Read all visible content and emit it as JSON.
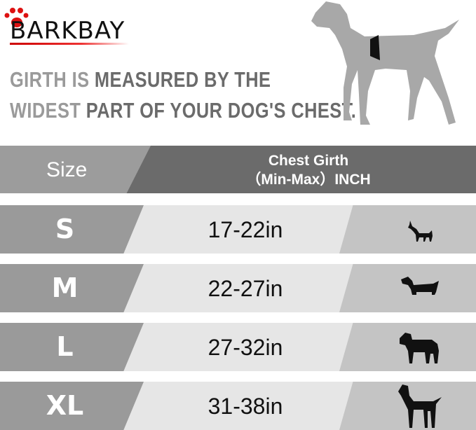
{
  "brand": {
    "logo": "BARKBAY",
    "accent": "#dd1111"
  },
  "headline": {
    "line1_light": "GIRTH IS",
    "line1_dark": "MEASURED BY THE",
    "line2_light": "WIDEST",
    "line2_dark": "PART OF YOUR DOG'S CHEST."
  },
  "table": {
    "header": {
      "size": "Size",
      "girth_line1": "Chest Girth",
      "girth_line2": "（Min-Max）INCH"
    },
    "rows": [
      {
        "size": "S",
        "girth": "17-22in",
        "icon": "chihuahua-icon"
      },
      {
        "size": "M",
        "girth": "22-27in",
        "icon": "dachshund-icon"
      },
      {
        "size": "L",
        "girth": "27-32in",
        "icon": "labrador-icon"
      },
      {
        "size": "XL",
        "girth": "31-38in",
        "icon": "great-dane-icon"
      }
    ]
  }
}
